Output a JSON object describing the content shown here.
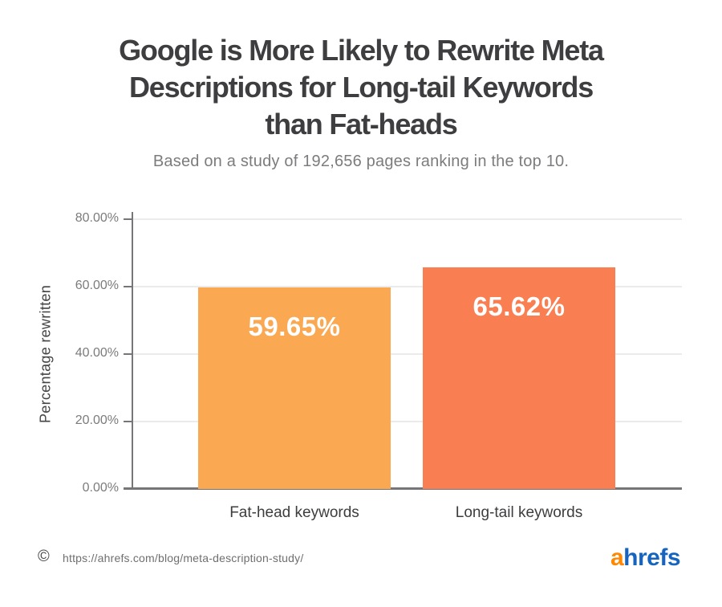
{
  "header": {
    "title": "Google is More Likely to Rewrite Meta\nDescriptions for Long-tail Keywords\nthan Fat-heads",
    "subtitle": "Based on a study of 192,656 pages ranking in the top 10."
  },
  "chart_data": {
    "type": "bar",
    "categories": [
      "Fat-head keywords",
      "Long-tail keywords"
    ],
    "values": [
      59.65,
      65.62
    ],
    "value_labels": [
      "59.65%",
      "65.62%"
    ],
    "bar_colors": [
      "#FAA851",
      "#F97F53"
    ],
    "value_label_color": "#FFFFFF",
    "title": "Google is More Likely to Rewrite Meta Descriptions for Long-tail Keywords than Fat-heads",
    "xlabel": "",
    "ylabel": "Percentage rewritten",
    "ylim": [
      0,
      80
    ],
    "yticks": [
      "0.00%",
      "20.00%",
      "40.00%",
      "60.00%",
      "80.00%"
    ],
    "ytick_values": [
      0,
      20,
      40,
      60,
      80
    ],
    "grid": "horizontal",
    "legend": "none"
  },
  "footer": {
    "copyright_symbol": "©",
    "source_url": "https://ahrefs.com/blog/meta-description-study/",
    "logo": {
      "part1": "a",
      "part2": "hrefs",
      "part1_color": "#FF8800",
      "part2_color": "#1565C0"
    }
  }
}
